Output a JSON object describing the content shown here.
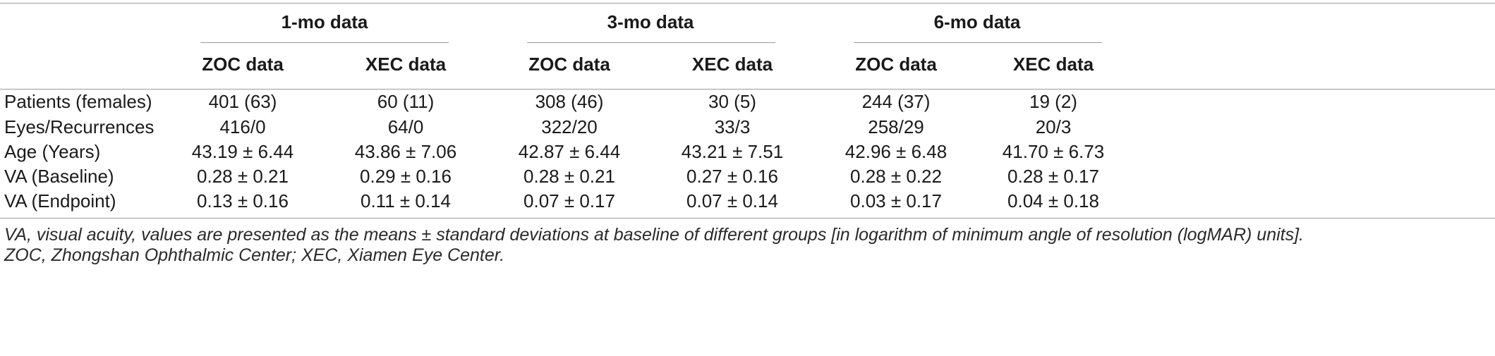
{
  "table": {
    "groups": [
      "1-mo data",
      "3-mo data",
      "6-mo data"
    ],
    "subheaders": [
      "ZOC data",
      "XEC data",
      "ZOC data",
      "XEC data",
      "ZOC data",
      "XEC data"
    ],
    "rows": [
      {
        "label": "Patients (females)",
        "cells": [
          "401 (63)",
          "60 (11)",
          "308 (46)",
          "30 (5)",
          "244 (37)",
          "19 (2)"
        ]
      },
      {
        "label": "Eyes/Recurrences",
        "cells": [
          "416/0",
          "64/0",
          "322/20",
          "33/3",
          "258/29",
          "20/3"
        ]
      },
      {
        "label": "Age (Years)",
        "cells": [
          "43.19 ± 6.44",
          "43.86 ± 7.06",
          "42.87 ± 6.44",
          "43.21 ± 7.51",
          "42.96 ± 6.48",
          "41.70 ± 6.73"
        ]
      },
      {
        "label": "VA (Baseline)",
        "cells": [
          "0.28 ± 0.21",
          "0.29 ± 0.16",
          "0.28 ± 0.21",
          "0.27 ± 0.16",
          "0.28 ± 0.22",
          "0.28 ± 0.17"
        ]
      },
      {
        "label": "VA (Endpoint)",
        "cells": [
          "0.13 ± 0.16",
          "0.11 ± 0.14",
          "0.07 ± 0.17",
          "0.07 ± 0.14",
          "0.03 ± 0.17",
          "0.04 ± 0.18"
        ]
      }
    ]
  },
  "footnote": {
    "line1": "VA, visual acuity, values are presented as the means ± standard deviations at baseline of different groups [in logarithm of minimum angle of resolution (logMAR) units].",
    "line2": "ZOC, Zhongshan Ophthalmic Center; XEC, Xiamen Eye Center."
  }
}
